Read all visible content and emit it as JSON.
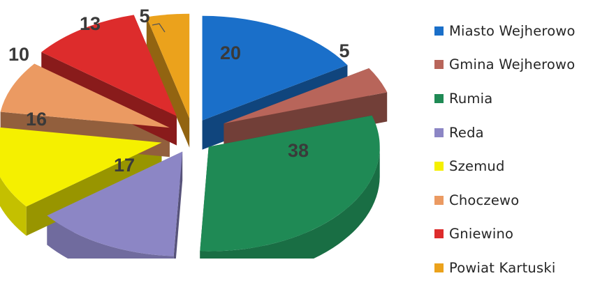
{
  "chart_data": {
    "type": "pie",
    "style": "exploded-3d",
    "categories": [
      "Miasto Wejherowo",
      "Gmina Wejherowo",
      "Rumia",
      "Reda",
      "Szemud",
      "Choczewo",
      "Gniewino",
      "Powiat Kartuski"
    ],
    "values": [
      20,
      5,
      38,
      17,
      16,
      10,
      13,
      5
    ],
    "value_labels": [
      "20",
      "5",
      "38",
      "17",
      "16",
      "10",
      "13",
      "5"
    ],
    "colors": [
      "#1a6fc9",
      "#b8655a",
      "#1f8a55",
      "#8c86c5",
      "#f5f000",
      "#eb9a62",
      "#dd2c2c",
      "#eba21c"
    ],
    "legend_position": "right",
    "title": ""
  }
}
